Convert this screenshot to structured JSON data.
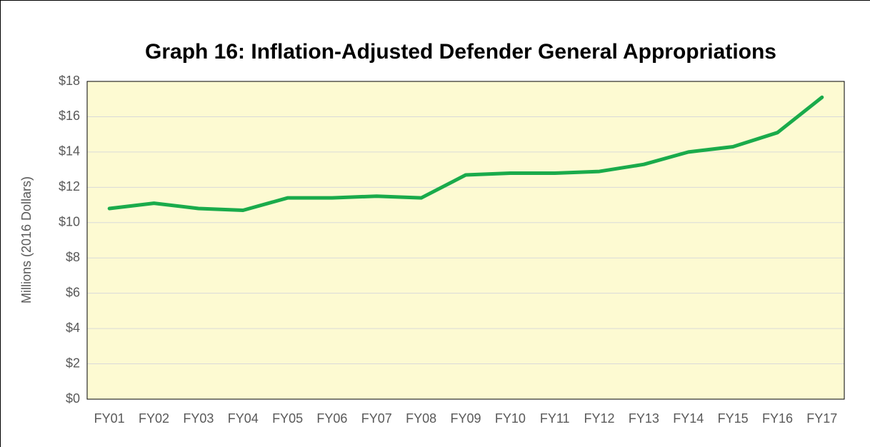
{
  "chart_data": {
    "type": "line",
    "title": "Graph 16: Inflation-Adjusted Defender General Appropriations",
    "y_label": "Millions (2016 Dollars)",
    "categories": [
      "FY01",
      "FY02",
      "FY03",
      "FY04",
      "FY05",
      "FY06",
      "FY07",
      "FY08",
      "FY09",
      "FY10",
      "FY11",
      "FY12",
      "FY13",
      "FY14",
      "FY15",
      "FY16",
      "FY17"
    ],
    "values": [
      10.8,
      11.1,
      10.8,
      10.7,
      11.4,
      11.4,
      11.5,
      11.4,
      12.7,
      12.8,
      12.8,
      12.9,
      13.3,
      14.0,
      14.3,
      15.1,
      17.1
    ],
    "color": "#1aab4b",
    "ylim": [
      0,
      18
    ],
    "yticks": [
      {
        "value": 0,
        "label": "$0"
      },
      {
        "value": 2,
        "label": "$2"
      },
      {
        "value": 4,
        "label": "$4"
      },
      {
        "value": 6,
        "label": "$6"
      },
      {
        "value": 8,
        "label": "$8"
      },
      {
        "value": 10,
        "label": "$10"
      },
      {
        "value": 12,
        "label": "$12"
      },
      {
        "value": 14,
        "label": "$14"
      },
      {
        "value": 16,
        "label": "$16"
      },
      {
        "value": 18,
        "label": "$18"
      }
    ],
    "grid": true
  }
}
